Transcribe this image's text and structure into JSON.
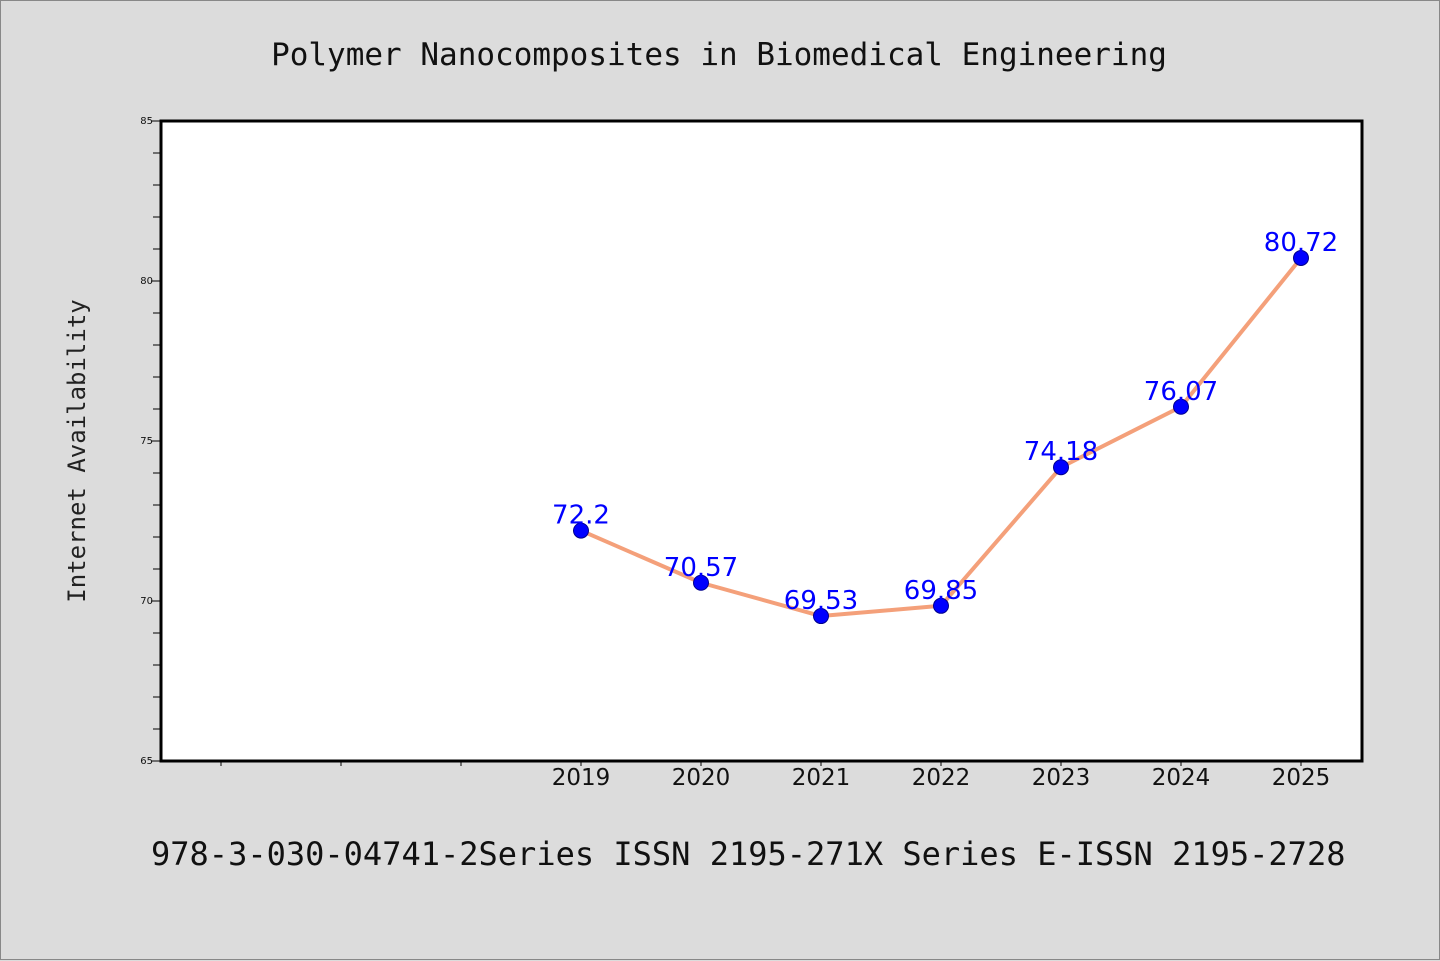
{
  "chart_data": {
    "type": "line",
    "title": "Polymer Nanocomposites in Biomedical Engineering",
    "xlabel": "",
    "ylabel": "Internet Availability",
    "categories": [
      "2019",
      "2020",
      "2021",
      "2022",
      "2023",
      "2024",
      "2025"
    ],
    "values": [
      72.2,
      70.57,
      69.53,
      69.85,
      74.18,
      76.07,
      80.72
    ],
    "data_labels": [
      "72.2",
      "70.57",
      "69.53",
      "69.85",
      "74.18",
      "76.07",
      "80.72"
    ],
    "ylim": [
      65,
      85
    ],
    "yticks": [
      "65",
      "70",
      "75",
      "80",
      "85"
    ],
    "grid": false,
    "colors": {
      "line": "#f4a07a",
      "marker": "#0000ff",
      "marker_edge": "#00008b",
      "data_label": "#0000ff",
      "background": "#dcdcdc",
      "plot_area": "#ffffff"
    }
  },
  "footer": {
    "text": "978-3-030-04741-2Series ISSN 2195-271X Series E-ISSN 2195-2728"
  }
}
